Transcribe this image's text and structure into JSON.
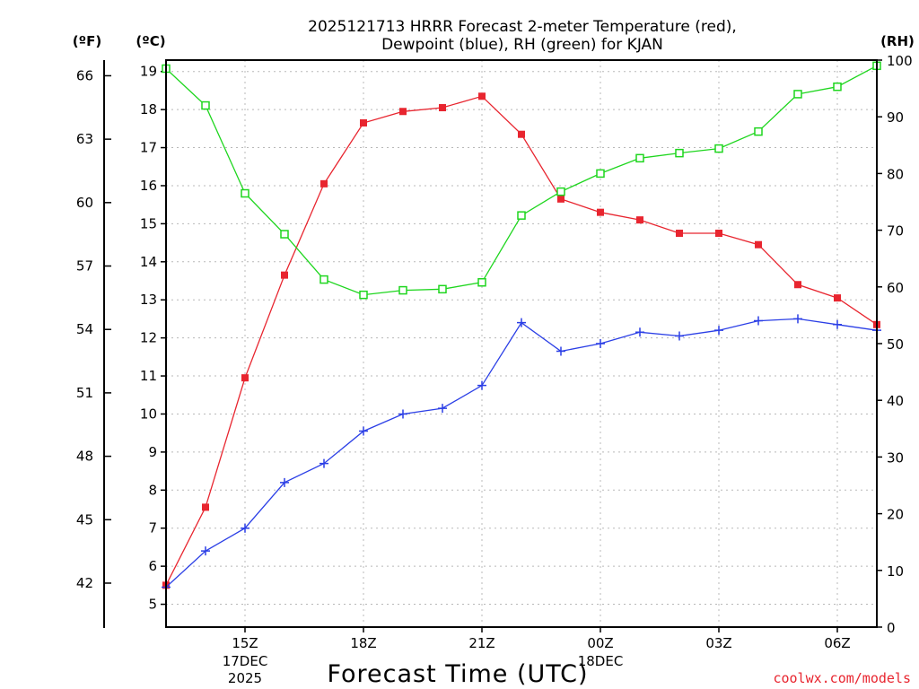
{
  "chart_data": {
    "type": "line",
    "title_line1": "2025121713 HRRR Forecast 2-meter Temperature (red),",
    "title_line2": "Dewpoint (blue), RH (green) for KJAN",
    "xlabel": "Forecast Time (UTC)",
    "credit": "coolwx.com/models",
    "units": {
      "fahrenheit": "(ºF)",
      "celsius": "(ºC)",
      "rh": "(RH)"
    },
    "x_hours": [
      13,
      14,
      15,
      16,
      17,
      18,
      19,
      20,
      21,
      22,
      23,
      24,
      25,
      26,
      27,
      28,
      29,
      30,
      31
    ],
    "x_ticks": [
      {
        "hour": 15,
        "label": "15Z",
        "sub": [
          "17DEC",
          "2025"
        ]
      },
      {
        "hour": 18,
        "label": "18Z",
        "sub": []
      },
      {
        "hour": 21,
        "label": "21Z",
        "sub": []
      },
      {
        "hour": 24,
        "label": "00Z",
        "sub": [
          "18DEC"
        ]
      },
      {
        "hour": 27,
        "label": "03Z",
        "sub": []
      },
      {
        "hour": 30,
        "label": "06Z",
        "sub": []
      }
    ],
    "celsius_ylim": [
      4.4,
      19.3
    ],
    "celsius_ticks": [
      5,
      6,
      7,
      8,
      9,
      10,
      11,
      12,
      13,
      14,
      15,
      16,
      17,
      18,
      19
    ],
    "fahrenheit_ticks": [
      42,
      45,
      48,
      51,
      54,
      57,
      60,
      63,
      66
    ],
    "rh_ylim": [
      0,
      100
    ],
    "rh_ticks": [
      0,
      10,
      20,
      30,
      40,
      50,
      60,
      70,
      80,
      90,
      100
    ],
    "series": [
      {
        "name": "2-meter Temperature",
        "axis": "celsius",
        "color": "#e8252f",
        "marker": "filled-square",
        "values": [
          5.5,
          7.55,
          10.95,
          13.65,
          16.05,
          17.65,
          17.95,
          18.05,
          18.35,
          17.35,
          15.65,
          15.3,
          15.1,
          14.75,
          14.75,
          14.45,
          13.4,
          13.05,
          12.35
        ]
      },
      {
        "name": "Dewpoint",
        "axis": "celsius",
        "color": "#2b3fe6",
        "marker": "plus",
        "values": [
          5.45,
          6.4,
          7.0,
          8.2,
          8.7,
          9.55,
          10.0,
          10.15,
          10.75,
          12.4,
          11.65,
          11.85,
          12.15,
          12.05,
          12.2,
          12.45,
          12.5,
          12.35,
          12.2
        ]
      },
      {
        "name": "RH",
        "axis": "rh",
        "color": "#1ed61e",
        "marker": "open-square",
        "values": [
          98.5,
          92.0,
          76.5,
          69.3,
          61.3,
          58.6,
          59.4,
          59.6,
          60.8,
          72.6,
          76.8,
          80.0,
          82.7,
          83.6,
          84.4,
          87.4,
          94.0,
          95.3,
          99.0
        ]
      }
    ]
  }
}
